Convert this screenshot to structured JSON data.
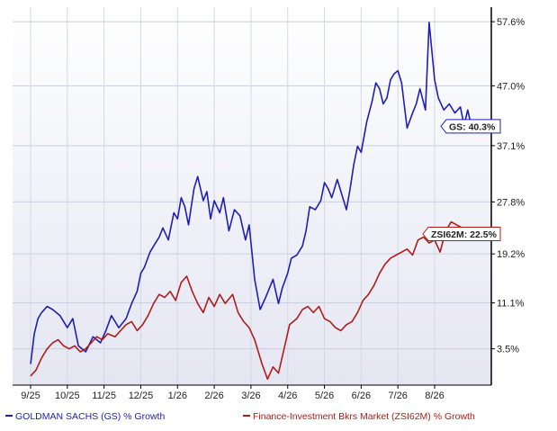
{
  "chart_data": {
    "type": "line",
    "grid": true,
    "legend_placement": "bottom",
    "y_ticks": [
      "57.6%",
      "47.0%",
      "37.1%",
      "27.8%",
      "19.2%",
      "11.1%",
      "3.5%"
    ],
    "y_tick_values": [
      57.6,
      47.0,
      37.1,
      27.8,
      19.2,
      11.1,
      3.5
    ],
    "x_ticks": [
      "9/25",
      "10/25",
      "11/25",
      "12/25",
      "1/26",
      "2/26",
      "3/26",
      "4/26",
      "5/26",
      "6/26",
      "7/26",
      "8/26"
    ],
    "ylim": [
      -2.5,
      60
    ],
    "xlim": [
      0,
      12.2
    ],
    "series": [
      {
        "name": "GOLDMAN SACHS (GS) % Growth",
        "short_label": "GS: 40.3%",
        "color": "#1f1fb4",
        "x": [
          0,
          0.1,
          0.2,
          0.3,
          0.45,
          0.6,
          0.8,
          1.0,
          1.15,
          1.3,
          1.5,
          1.7,
          1.9,
          2.05,
          2.2,
          2.4,
          2.6,
          2.75,
          2.9,
          3.0,
          3.1,
          3.25,
          3.4,
          3.5,
          3.6,
          3.75,
          3.9,
          4.0,
          4.1,
          4.2,
          4.3,
          4.45,
          4.55,
          4.7,
          4.8,
          4.9,
          5.0,
          5.15,
          5.25,
          5.4,
          5.55,
          5.7,
          5.85,
          5.95,
          6.1,
          6.25,
          6.4,
          6.6,
          6.75,
          6.85,
          7.0,
          7.1,
          7.25,
          7.4,
          7.5,
          7.6,
          7.75,
          7.9,
          8.0,
          8.1,
          8.2,
          8.35,
          8.45,
          8.6,
          8.7,
          8.8,
          8.9,
          9.0,
          9.15,
          9.3,
          9.4,
          9.5,
          9.6,
          9.7,
          9.8,
          9.9,
          10.0,
          10.1,
          10.25,
          10.4,
          10.5,
          10.6,
          10.75,
          10.85,
          11.0,
          11.1,
          11.25,
          11.4,
          11.55,
          11.7,
          11.8,
          11.9,
          12.0
        ],
        "values": [
          1.0,
          6.0,
          8.5,
          9.5,
          10.5,
          10.0,
          9.0,
          7.0,
          8.5,
          4.0,
          3.0,
          5.5,
          4.5,
          6.5,
          9.0,
          7.0,
          8.5,
          11.0,
          13.0,
          16.0,
          17.0,
          19.5,
          21.0,
          22.0,
          23.5,
          21.5,
          26.0,
          25.0,
          28.5,
          27.0,
          24.0,
          30.0,
          32.0,
          28.0,
          29.5,
          25.0,
          28.0,
          26.0,
          28.5,
          23.0,
          26.5,
          25.5,
          21.5,
          24.0,
          15.0,
          10.0,
          12.0,
          15.0,
          11.0,
          13.5,
          16.0,
          18.5,
          19.0,
          20.5,
          23.0,
          27.0,
          26.5,
          28.0,
          31.0,
          30.0,
          28.5,
          31.5,
          29.5,
          26.5,
          30.0,
          34.0,
          37.0,
          36.0,
          41.0,
          44.5,
          47.5,
          46.5,
          44.0,
          45.0,
          48.0,
          49.0,
          49.5,
          47.5,
          40.0,
          42.5,
          44.0,
          46.5,
          43.0,
          57.5,
          48.0,
          45.0,
          43.0,
          44.0,
          42.5,
          43.5,
          40.5,
          43.0,
          40.3
        ]
      },
      {
        "name": "Finance-Investment Bkrs Market (ZSI62M) % Growth",
        "short_label": "ZSI62M: 22.5%",
        "color": "#b01c1c",
        "x": [
          0,
          0.15,
          0.3,
          0.45,
          0.6,
          0.75,
          0.9,
          1.05,
          1.2,
          1.35,
          1.5,
          1.65,
          1.8,
          1.95,
          2.1,
          2.3,
          2.45,
          2.6,
          2.75,
          2.9,
          3.05,
          3.2,
          3.35,
          3.5,
          3.65,
          3.8,
          3.95,
          4.1,
          4.25,
          4.4,
          4.55,
          4.7,
          4.85,
          5.0,
          5.15,
          5.3,
          5.5,
          5.65,
          5.8,
          5.95,
          6.1,
          6.3,
          6.45,
          6.6,
          6.75,
          6.9,
          7.05,
          7.25,
          7.4,
          7.55,
          7.7,
          7.85,
          8.0,
          8.15,
          8.3,
          8.45,
          8.6,
          8.75,
          8.9,
          9.05,
          9.2,
          9.35,
          9.5,
          9.65,
          9.8,
          9.95,
          10.1,
          10.25,
          10.4,
          10.55,
          10.7,
          10.85,
          11.0,
          11.15,
          11.3,
          11.45,
          11.6,
          11.75,
          11.9,
          12.0
        ],
        "values": [
          -1.0,
          0.0,
          2.0,
          3.5,
          4.5,
          5.0,
          4.0,
          3.5,
          4.0,
          3.0,
          3.5,
          4.5,
          5.5,
          5.0,
          6.0,
          5.5,
          6.5,
          7.5,
          8.0,
          6.5,
          7.5,
          9.0,
          11.0,
          12.5,
          12.0,
          13.0,
          11.5,
          14.5,
          15.5,
          13.0,
          11.0,
          9.5,
          12.0,
          10.5,
          12.5,
          11.0,
          12.5,
          9.5,
          8.0,
          7.0,
          5.0,
          1.0,
          -1.5,
          0.5,
          -0.5,
          3.5,
          7.5,
          8.5,
          10.0,
          10.5,
          9.5,
          10.5,
          8.5,
          8.0,
          7.0,
          6.5,
          7.5,
          8.0,
          9.5,
          11.5,
          12.5,
          14.0,
          16.0,
          17.5,
          18.5,
          19.0,
          19.5,
          20.0,
          19.0,
          21.5,
          22.0,
          21.0,
          21.5,
          19.5,
          23.0,
          24.5,
          24.0,
          23.5,
          22.0,
          22.5
        ]
      }
    ]
  }
}
